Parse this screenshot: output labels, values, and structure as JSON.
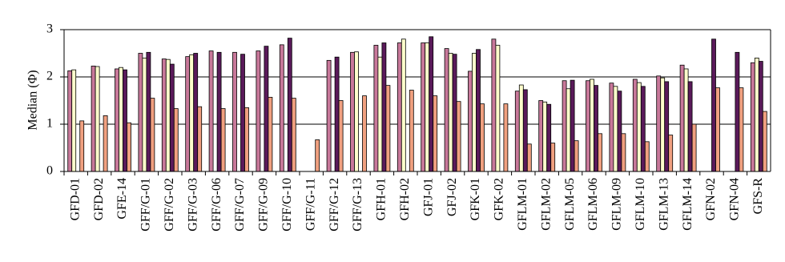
{
  "chart_data": {
    "type": "bar",
    "y_label": "Median (Φ)",
    "categories": [
      "GFD-01",
      "GFD-02",
      "GFE-14",
      "GFF/G-01",
      "GFF/G-02",
      "GFF/G-03",
      "GFF/G-06",
      "GFF/G-07",
      "GFF/G-09",
      "GFF/G-10",
      "GFF/G-11",
      "GFF/G-12",
      "GFF/G-13",
      "GFH-01",
      "GFH-02",
      "GFJ-01",
      "GFJ-02",
      "GFK-01",
      "GFK-02",
      "GFLM-01",
      "GFLM-02",
      "GFLM-05",
      "GFLM-06",
      "GFLM-09",
      "GFLM-10",
      "GFLM-13",
      "GFLM-14",
      "GFN-02",
      "GFN-04",
      "GFS-R"
    ],
    "series": [
      {
        "color": "#c8789a",
        "values": [
          2.13,
          2.23,
          2.17,
          2.5,
          2.38,
          2.43,
          2.55,
          2.52,
          2.55,
          2.68,
          null,
          2.35,
          2.52,
          2.67,
          2.72,
          2.72,
          2.6,
          2.12,
          2.8,
          1.7,
          1.5,
          1.92,
          1.92,
          1.87,
          1.95,
          2.02,
          2.25,
          null,
          null,
          2.3
        ]
      },
      {
        "color": "#ffffcc",
        "values": [
          2.15,
          2.22,
          2.2,
          2.4,
          2.37,
          2.47,
          null,
          null,
          null,
          null,
          null,
          null,
          2.53,
          2.42,
          2.8,
          2.72,
          2.5,
          2.5,
          2.67,
          1.83,
          1.47,
          1.75,
          1.95,
          1.8,
          1.88,
          1.98,
          2.17,
          null,
          null,
          2.4
        ]
      },
      {
        "color": "#5a1a5a",
        "values": [
          null,
          null,
          2.15,
          2.52,
          2.27,
          2.5,
          2.52,
          2.48,
          2.65,
          2.82,
          null,
          2.42,
          null,
          2.72,
          null,
          2.85,
          2.48,
          2.58,
          null,
          1.73,
          1.42,
          1.93,
          1.82,
          1.7,
          1.8,
          1.9,
          1.9,
          2.8,
          2.52,
          2.33
        ]
      },
      {
        "color": "#f0a080",
        "values": [
          1.07,
          1.18,
          1.03,
          1.55,
          1.33,
          1.37,
          1.33,
          1.35,
          1.57,
          1.55,
          0.67,
          1.5,
          1.6,
          1.82,
          1.72,
          1.6,
          1.48,
          1.43,
          1.43,
          0.58,
          0.6,
          0.65,
          0.8,
          0.8,
          0.63,
          0.77,
          1.0,
          1.77,
          1.77,
          1.27
        ]
      }
    ],
    "ylim": [
      0,
      3
    ],
    "yticks": [
      0,
      1,
      2,
      3
    ],
    "grid": true
  }
}
